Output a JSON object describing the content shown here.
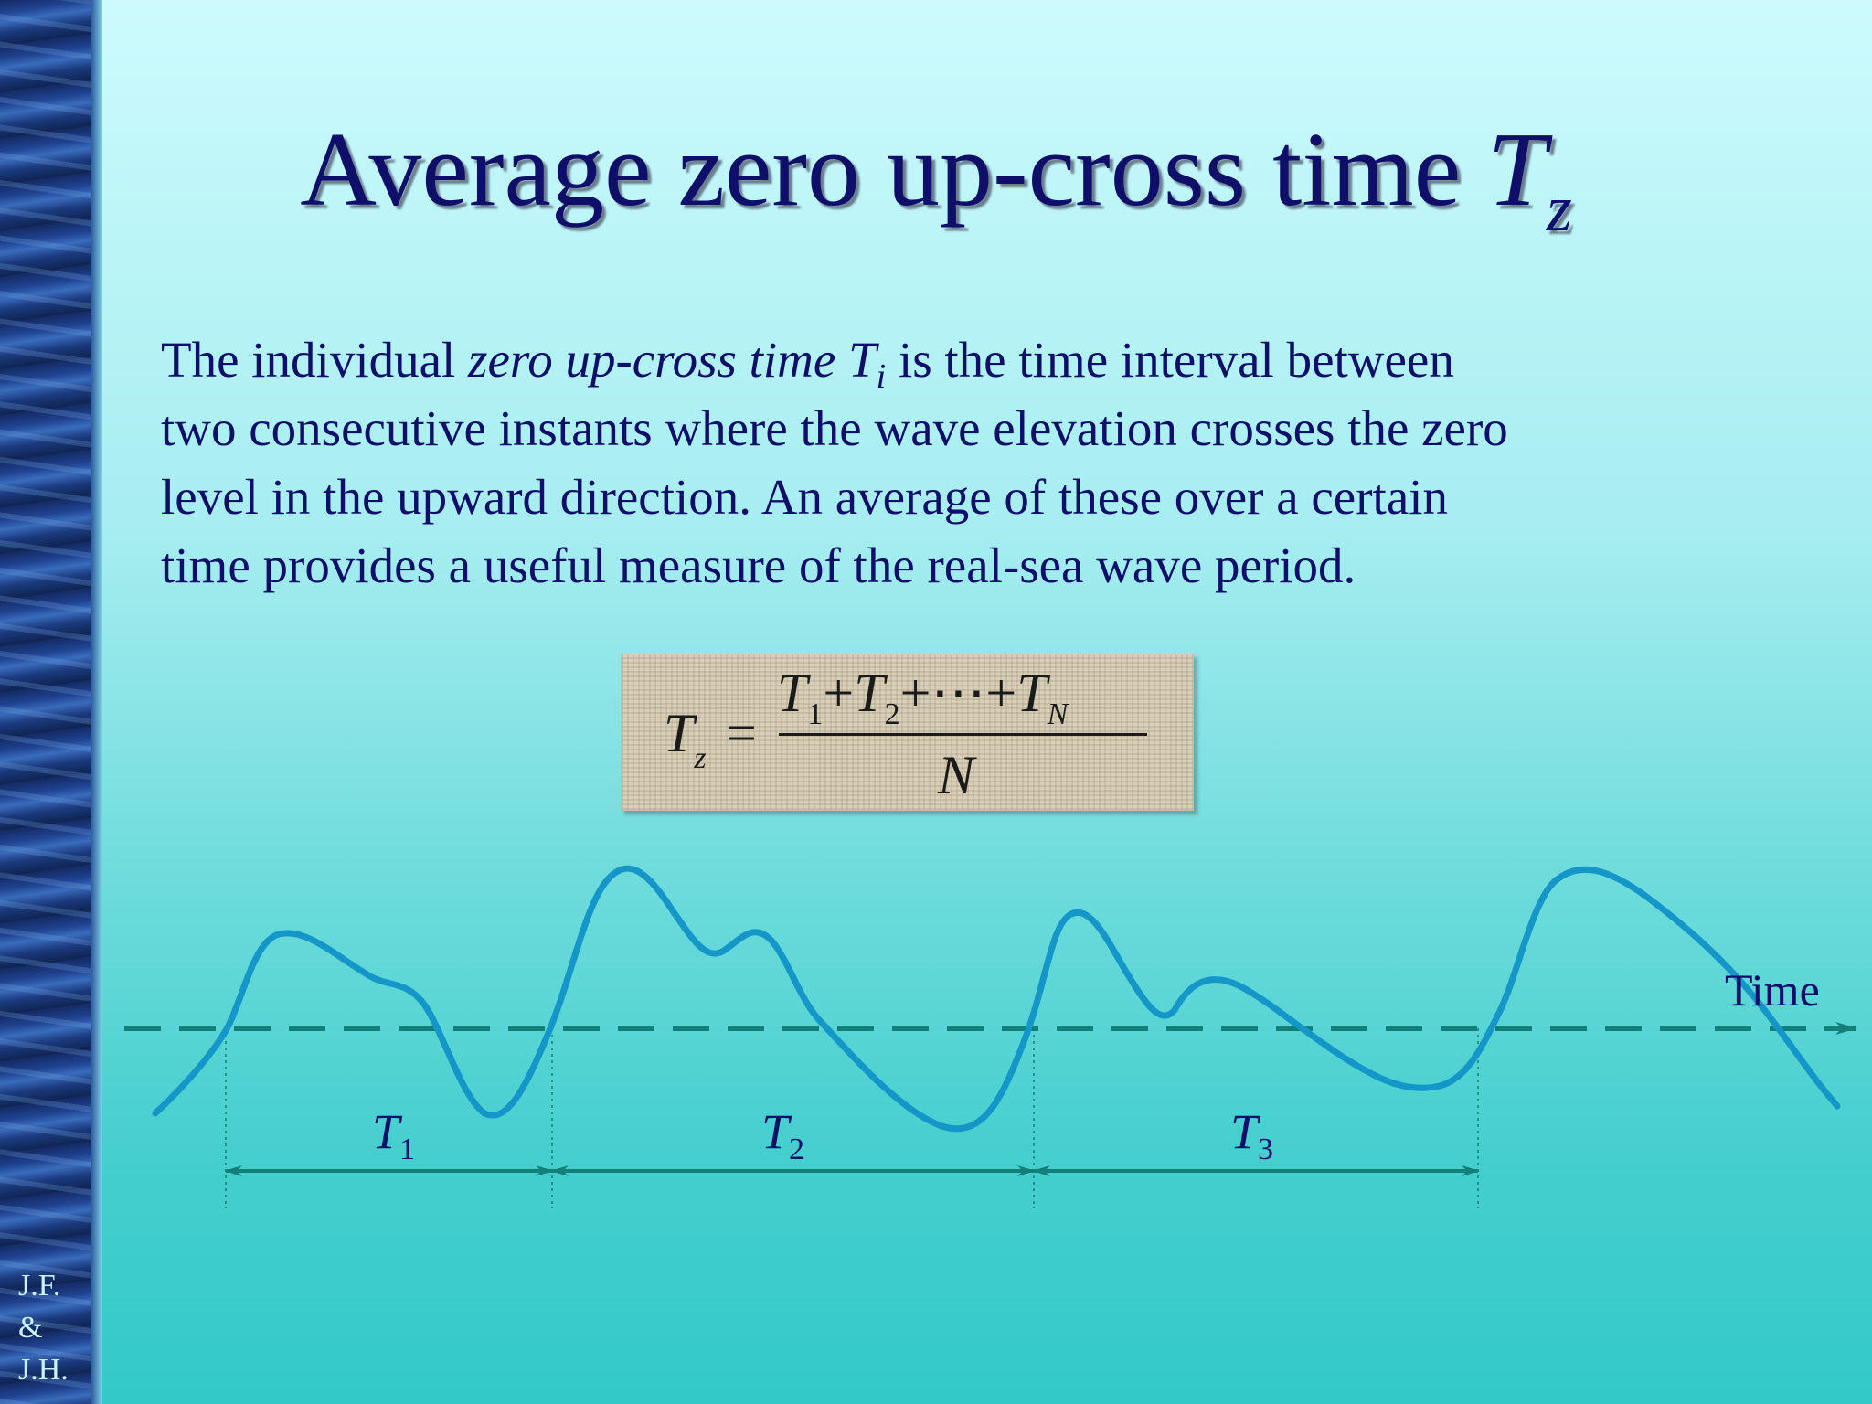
{
  "title": {
    "text": "Average zero up-cross time ",
    "symbol": "T",
    "subscript": "z"
  },
  "body": {
    "p1": "The individual ",
    "p2_italic": "zero up-cross time T",
    "p2_sub": "i",
    "p3": " is the time interval between",
    "line2": "two consecutive instants where the wave elevation crosses the zero",
    "line3": "level in the upward direction. An average of these over a certain",
    "line4": "time provides a useful measure of the real-sea wave period."
  },
  "formula": {
    "lhs": "T",
    "lhs_sub": "z",
    "equals": "=",
    "numerator": {
      "t1": "T",
      "s1": "1",
      "plus1": "+",
      "t2": "T",
      "s2": "2",
      "plus2": "+⋯+",
      "tn": "T",
      "sn": "N"
    },
    "denominator": "N"
  },
  "diagram": {
    "axis_label": "Time",
    "intervals": [
      {
        "symbol": "T",
        "sub": "1"
      },
      {
        "symbol": "T",
        "sub": "2"
      },
      {
        "symbol": "T",
        "sub": "3"
      }
    ],
    "colors": {
      "wave": "#1596c8",
      "axis": "#127f78"
    }
  },
  "credit": {
    "l1": "J.F.",
    "l2": "&",
    "l3": "J.H."
  }
}
